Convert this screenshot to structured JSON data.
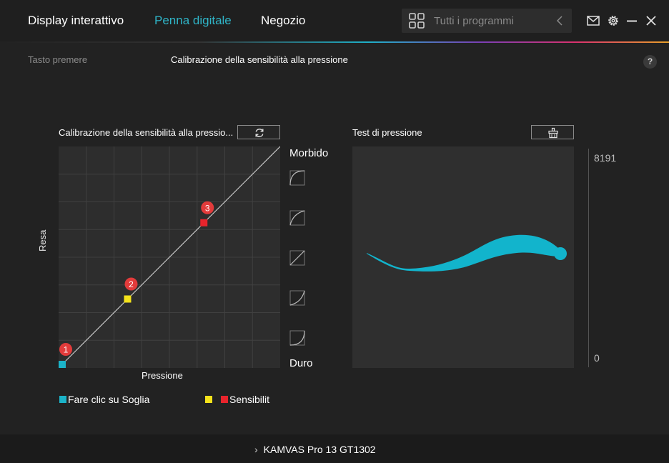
{
  "header": {
    "tabs": [
      {
        "label": "Display interattivo",
        "active": false
      },
      {
        "label": "Penna digitale",
        "active": true
      },
      {
        "label": "Negozio",
        "active": false
      }
    ],
    "search": {
      "placeholder": "Tutti i programmi"
    },
    "icons": [
      "grid-icon",
      "back-icon",
      "mail-icon",
      "gear-icon",
      "minimize-icon",
      "close-icon"
    ]
  },
  "subnav": {
    "items": [
      {
        "label": "Tasto premere",
        "active": false
      },
      {
        "label": "Calibrazione della sensibilità alla pressione",
        "active": true
      }
    ],
    "help_label": "?"
  },
  "calibration": {
    "title": "Calibrazione della sensibilità alla pressio...",
    "reset_icon": "refresh-icon",
    "x_label": "Pressione",
    "y_label": "Resa",
    "soft_label": "Morbido",
    "hard_label": "Duro",
    "points": [
      {
        "number": "1",
        "pressure": 0.0,
        "output": 0.0,
        "color": "#1bb3c8"
      },
      {
        "number": "2",
        "pressure": 0.3,
        "output": 0.3,
        "color": "#f4e21b"
      },
      {
        "number": "3",
        "pressure": 0.65,
        "output": 0.65,
        "color": "#e8242c"
      }
    ],
    "presets": [
      "curve-softest-icon",
      "curve-soft-icon",
      "curve-linear-icon",
      "curve-hard-icon",
      "curve-hardest-icon"
    ]
  },
  "pressure_test": {
    "title": "Test di pressione",
    "clear_icon": "clear-icon",
    "max_label": "8191",
    "min_label": "0",
    "stroke_color": "#12b4cc"
  },
  "legend": [
    {
      "color": "#1bb3c8",
      "label": "Fare clic su Soglia"
    },
    {
      "color": "#f4e21b",
      "label": ""
    },
    {
      "color": "#e8242c",
      "label": "Sensibilit"
    }
  ],
  "footer": {
    "device": "KAMVAS Pro 13 GT1302"
  },
  "colors": {
    "accent": "#2fb5c8",
    "background": "#222222",
    "panel": "#2d2d2d"
  }
}
